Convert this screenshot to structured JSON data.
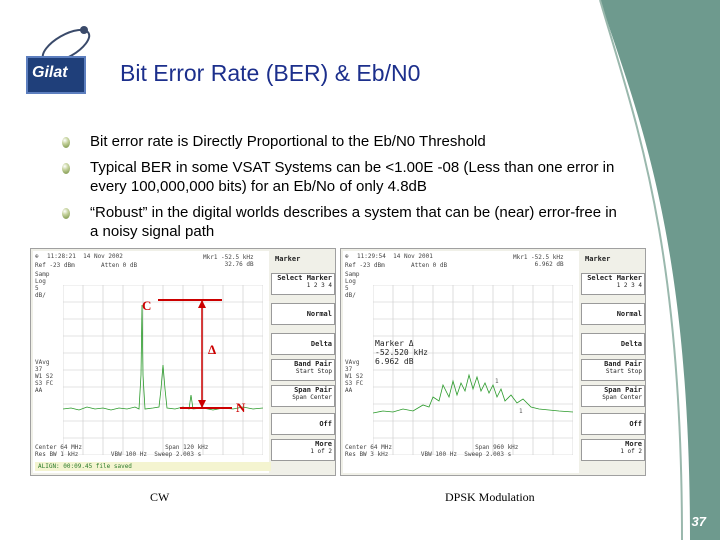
{
  "slide": {
    "title": "Bit Error Rate (BER) & Eb/N0",
    "logo_text": "Gilat",
    "page_number": "37",
    "colors": {
      "title": "#1c2f8c",
      "deco_panel": "#6e9a8e",
      "annotation": "#cc0000"
    }
  },
  "bullets": [
    "Bit error rate is Directly Proportional to the Eb/N0 Threshold",
    "Typical BER in some VSAT Systems can be <1.00E -08 (Less than one error in every 100,000,000 bits) for an Eb/No of only 4.8dB",
    "“Robust” in the digital worlds describes a system that can be (near) error-free in a noisy signal path"
  ],
  "captions": {
    "left": "CW",
    "right": "DPSK Modulation"
  },
  "annotations": {
    "carrier": "C",
    "noise": "N",
    "delta": "Δ"
  },
  "left_screen": {
    "time": "11:28:21  14 Nov 2002",
    "ref": "Ref -23 dBm",
    "atten": "Atten 0 dB",
    "marker": "Mkr1 -52.5 kHz\n32.76 dB",
    "left_axis": "Samp\nLog\n5\ndB/",
    "vavg": "VAvg\n37\nW1 S2\nS3 FC\nAA",
    "center": "Center 64 MHz",
    "span": "Span 120 kHz",
    "res_bw": "Res BW 1 kHz",
    "vbw": "VBW 100 Hz",
    "sweep": "Sweep 2.003 s",
    "status": "ALIGN: 00:09.45 file saved"
  },
  "right_screen": {
    "time": "11:29:54  14 Nov 2001",
    "ref": "Ref -23 dBm",
    "atten": "Atten 0 dB",
    "marker": "Mkr1 -52.5 kHz\n6.962 dB",
    "left_axis": "Samp\nLog\n5\ndB/",
    "vavg": "VAvg\n37\nW1 S2\nS3 FC\nAA",
    "center": "Center 64 MHz",
    "span": "Span 960 kHz",
    "res_bw": "Res BW 3 kHz",
    "vbw": "VBW 100 Hz",
    "sweep": "Sweep 2.003 s",
    "marker_box": "Marker Δ\n-52.520 kHz\n6.962 dB"
  },
  "softkeys": {
    "title": "Marker",
    "items": [
      {
        "label": "Select Marker",
        "sub": "1  2  3  4"
      },
      {
        "label": "Normal",
        "sub": ""
      },
      {
        "label": "Delta",
        "sub": ""
      },
      {
        "label": "Band Pair",
        "sub": "Start  Stop"
      },
      {
        "label": "Span Pair",
        "sub": "Span  Center"
      },
      {
        "label": "Off",
        "sub": ""
      },
      {
        "label": "More",
        "sub": "1 of 2"
      }
    ]
  }
}
